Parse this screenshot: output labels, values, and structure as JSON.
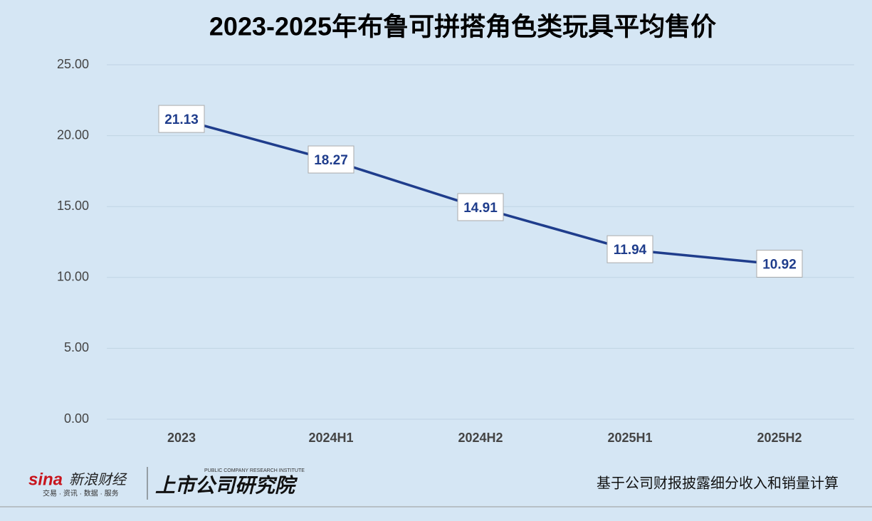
{
  "chart_data": {
    "type": "line",
    "title": "2023-2025年布鲁可拼搭角色类玩具平均售价",
    "categories": [
      "2023",
      "2024H1",
      "2024H2",
      "2025H1",
      "2025H2"
    ],
    "values": [
      21.13,
      18.27,
      14.91,
      11.94,
      10.92
    ],
    "color": "#1f3d8c",
    "ylim": [
      0,
      25
    ],
    "yticks": [
      {
        "value": 0,
        "label": "0.00"
      },
      {
        "value": 5,
        "label": "5.00"
      },
      {
        "value": 10,
        "label": "10.00"
      },
      {
        "value": 15,
        "label": "15.00"
      },
      {
        "value": 20,
        "label": "20.00"
      },
      {
        "value": 25,
        "label": "25.00"
      }
    ],
    "grid": true
  },
  "footer": {
    "brand": "新浪财经",
    "brand_logo": "sina",
    "brand_tagline": "交易 · 资讯 · 数据 · 服务",
    "institute": "上市公司研究院",
    "institute_en": "PUBLIC COMPANY RESEARCH INSTITUTE",
    "note": "基于公司财报披露细分收入和销量计算"
  }
}
